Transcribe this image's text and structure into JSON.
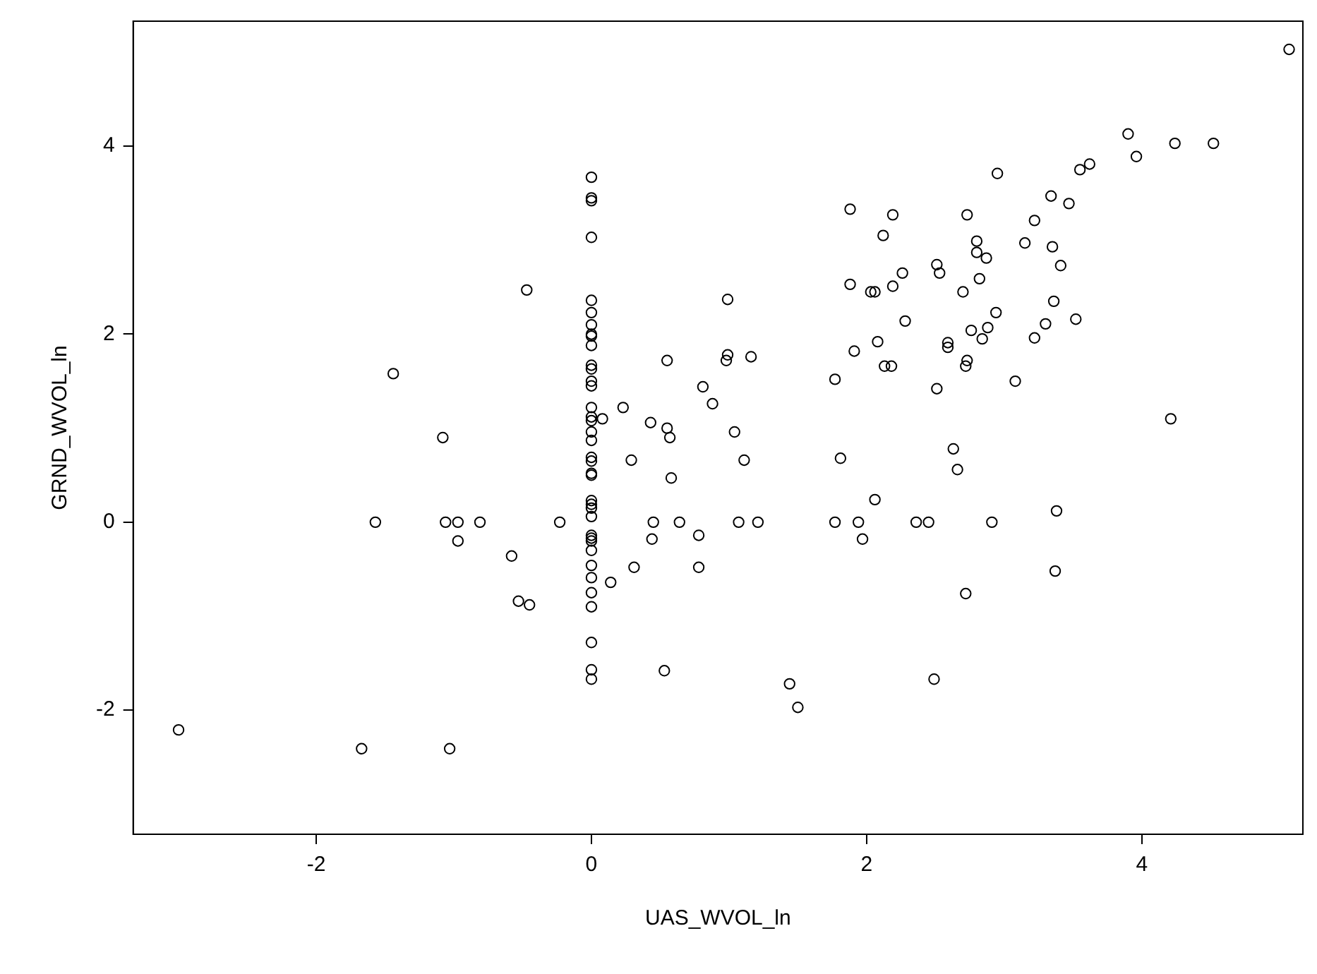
{
  "chart_data": {
    "type": "scatter",
    "xlabel": "UAS_WVOL_ln",
    "ylabel": "GRND_WVOL_ln",
    "marker": "circle",
    "grid": false,
    "legend": false,
    "xlim": [
      -3.33,
      5.17
    ],
    "ylim": [
      -3.32,
      5.33
    ],
    "xticks": [
      -2,
      0,
      2,
      4
    ],
    "yticks": [
      -2,
      0,
      2,
      4
    ],
    "series": [
      {
        "color": "#000000",
        "x": [
          0,
          0,
          0,
          0,
          0,
          0,
          0,
          0,
          0,
          0,
          0,
          0,
          0,
          0,
          0,
          0,
          0,
          0,
          0,
          0,
          0,
          0,
          0,
          0,
          0,
          0,
          0,
          0,
          0,
          0,
          0,
          0,
          0,
          0,
          0,
          0,
          0,
          0,
          -0.47,
          -1.44,
          -1.08,
          0.55,
          0.81,
          0.88,
          0.23,
          0.08,
          0.43,
          0.55,
          0.57,
          0.29,
          0.58,
          -1.57,
          -1.06,
          -0.97,
          -0.81,
          -0.97,
          -0.58,
          -0.23,
          -0.53,
          -0.45,
          0.14,
          0.31,
          0.45,
          0.64,
          0.44,
          0.78,
          0.78,
          0.53,
          -3.0,
          -1.67,
          -1.03,
          5.07,
          3.9,
          4.24,
          4.52,
          3.96,
          3.55,
          3.62,
          2.95,
          3.34,
          3.47,
          1.88,
          2.19,
          2.73,
          3.22,
          2.12,
          2.8,
          3.15,
          3.35,
          2.8,
          2.87,
          3.41,
          2.51,
          2.53,
          2.26,
          1.88,
          2.03,
          2.06,
          2.19,
          2.82,
          2.7,
          0.99,
          3.36,
          2.94,
          2.28,
          3.52,
          2.88,
          2.76,
          3.3,
          2.84,
          3.22,
          2.08,
          1.91,
          2.59,
          2.59,
          2.73,
          2.72,
          2.13,
          2.18,
          1.77,
          3.08,
          2.51,
          0.99,
          0.98,
          1.16,
          1.04,
          4.21,
          1.11,
          1.81,
          2.63,
          2.66,
          2.06,
          1.07,
          1.21,
          1.77,
          1.94,
          1.97,
          2.36,
          2.45,
          2.91,
          3.38,
          3.37,
          2.72,
          1.44,
          1.5,
          2.49
        ],
        "values": [
          3.67,
          3.45,
          3.42,
          3.03,
          2.36,
          2.23,
          2.1,
          2.0,
          1.98,
          1.88,
          1.67,
          1.63,
          1.5,
          1.45,
          1.22,
          1.12,
          1.08,
          0.96,
          0.87,
          0.69,
          0.65,
          0.52,
          0.5,
          0.23,
          0.19,
          0.15,
          0.06,
          -0.14,
          -0.17,
          -0.2,
          -0.3,
          -0.46,
          -0.59,
          -0.75,
          -0.9,
          -1.28,
          -1.57,
          -1.67,
          2.47,
          1.58,
          0.9,
          1.72,
          1.44,
          1.26,
          1.22,
          1.1,
          1.06,
          1.0,
          0.9,
          0.66,
          0.47,
          0,
          0,
          0,
          0,
          -0.2,
          -0.36,
          0,
          -0.84,
          -0.88,
          -0.64,
          -0.48,
          0,
          0,
          -0.18,
          -0.14,
          -0.48,
          -1.58,
          -2.21,
          -2.41,
          -2.41,
          5.03,
          4.13,
          4.03,
          4.03,
          3.89,
          3.75,
          3.81,
          3.71,
          3.47,
          3.39,
          3.33,
          3.27,
          3.27,
          3.21,
          3.05,
          2.99,
          2.97,
          2.93,
          2.87,
          2.81,
          2.73,
          2.74,
          2.65,
          2.65,
          2.53,
          2.45,
          2.45,
          2.51,
          2.59,
          2.45,
          2.37,
          2.35,
          2.23,
          2.14,
          2.16,
          2.07,
          2.04,
          2.11,
          1.95,
          1.96,
          1.92,
          1.82,
          1.91,
          1.86,
          1.72,
          1.66,
          1.66,
          1.66,
          1.52,
          1.5,
          1.42,
          1.78,
          1.72,
          1.76,
          0.96,
          1.1,
          0.66,
          0.68,
          0.78,
          0.56,
          0.24,
          0,
          0,
          0,
          0,
          -0.18,
          0,
          0,
          0,
          0.12,
          -0.52,
          -0.76,
          -1.72,
          -1.97,
          -1.67
        ]
      }
    ]
  }
}
